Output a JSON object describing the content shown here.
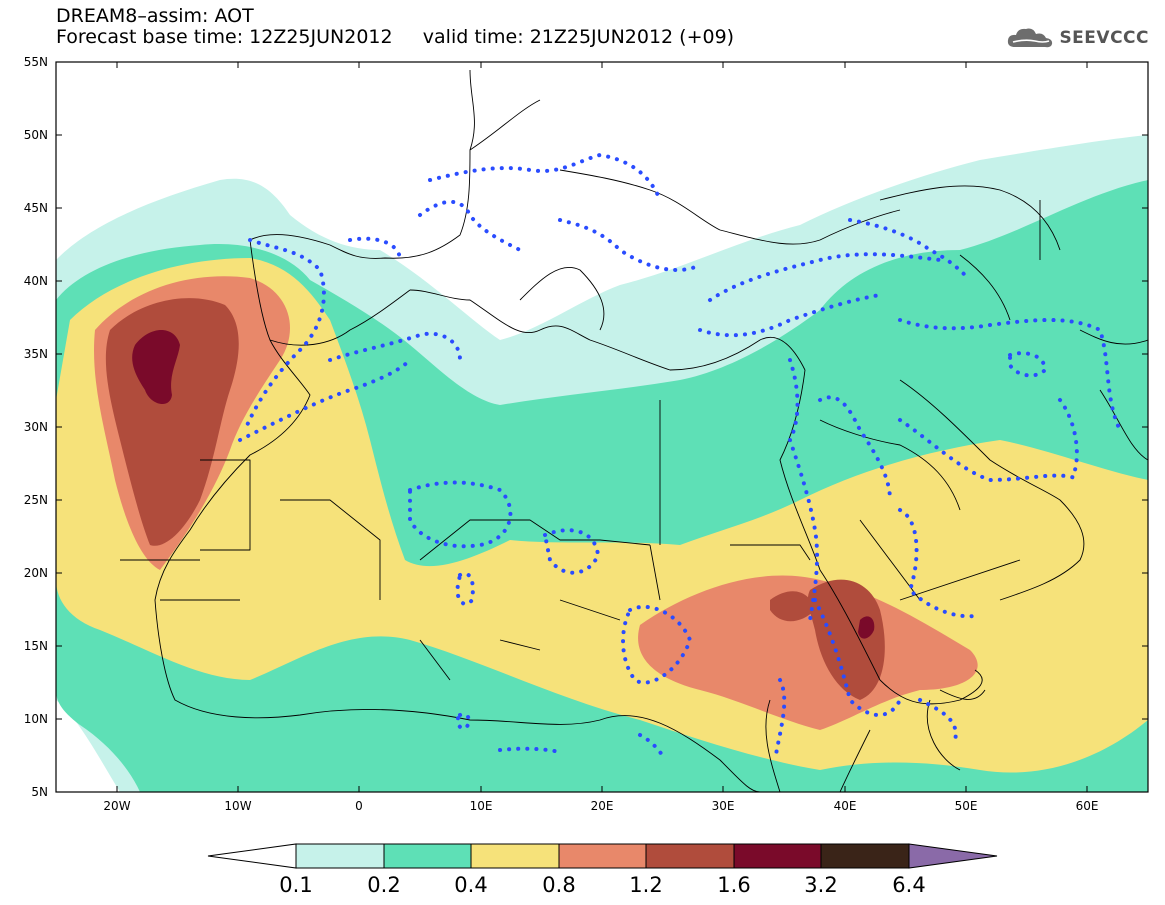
{
  "title": {
    "line1": "DREAM8–assim: AOT",
    "line2": "Forecast base time: 12Z25JUN2012     valid time: 21Z25JUN2012 (+09)"
  },
  "logo": {
    "text": "SEEVCCC",
    "icon": "cloud-icon"
  },
  "map": {
    "lat_labels": [
      "55N",
      "50N",
      "45N",
      "40N",
      "35N",
      "30N",
      "25N",
      "20N",
      "15N",
      "10N",
      "5N"
    ],
    "lon_labels": [
      "20W",
      "10W",
      "0",
      "10E",
      "20E",
      "30E",
      "40E",
      "50E",
      "60E"
    ]
  },
  "colorbar": {
    "labels": [
      "0.1",
      "0.2",
      "0.4",
      "0.8",
      "1.2",
      "1.6",
      "3.2",
      "6.4"
    ],
    "colors": {
      "lt01": "#ffffff",
      "b1": "#c6f2ea",
      "b2": "#5ee0b6",
      "b3": "#f6e27a",
      "b4": "#e8886a",
      "b5": "#b04c3c",
      "b6": "#7a0a2a",
      "b7": "#3a2418",
      "gt64": "#8a6aa8"
    }
  }
}
